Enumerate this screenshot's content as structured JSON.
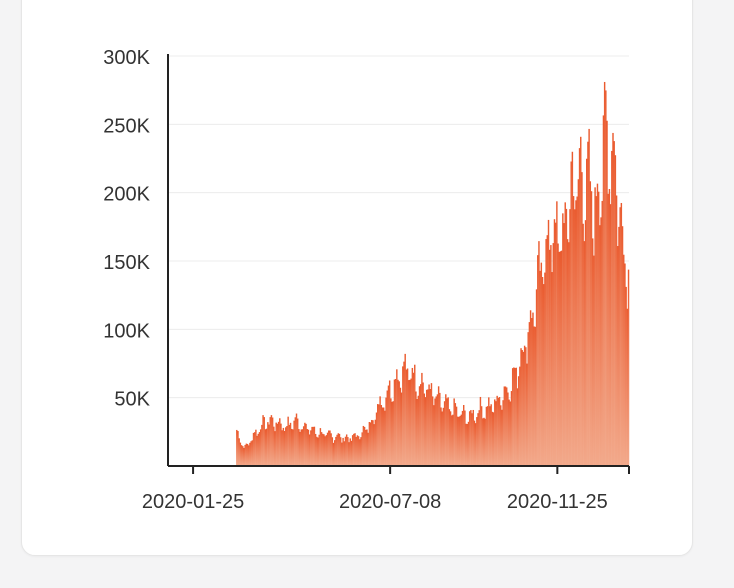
{
  "chart_data": {
    "type": "bar",
    "title": "",
    "xlabel": "",
    "ylabel": "",
    "x_range": [
      "2020-01-04",
      "2021-01-24"
    ],
    "ylim": [
      0,
      300000
    ],
    "y_ticks": [
      {
        "value": 50000,
        "label": "50K"
      },
      {
        "value": 100000,
        "label": "100K"
      },
      {
        "value": 150000,
        "label": "150K"
      },
      {
        "value": 200000,
        "label": "200K"
      },
      {
        "value": 250000,
        "label": "250K"
      },
      {
        "value": 300000,
        "label": "300K"
      }
    ],
    "x_ticks": [
      {
        "date": "2020-01-25",
        "label": "2020-01-25"
      },
      {
        "date": "2020-07-08",
        "label": "2020-07-08"
      },
      {
        "date": "2020-11-25",
        "label": "2020-11-25"
      }
    ],
    "grid": true,
    "legend": "none",
    "bar_color_top": "#ea5a2e",
    "bar_color_bottom": "#f2a98b",
    "series": [
      {
        "name": "",
        "points": [
          [
            "2020-03-01",
            24000
          ],
          [
            "2020-03-08",
            13000
          ],
          [
            "2020-03-15",
            22000
          ],
          [
            "2020-03-22",
            30000
          ],
          [
            "2020-03-29",
            33000
          ],
          [
            "2020-04-05",
            31000
          ],
          [
            "2020-04-12",
            29000
          ],
          [
            "2020-04-19",
            33000
          ],
          [
            "2020-04-26",
            29000
          ],
          [
            "2020-05-03",
            26000
          ],
          [
            "2020-05-10",
            24000
          ],
          [
            "2020-05-17",
            22000
          ],
          [
            "2020-05-24",
            22000
          ],
          [
            "2020-05-31",
            20000
          ],
          [
            "2020-06-07",
            21000
          ],
          [
            "2020-06-14",
            24000
          ],
          [
            "2020-06-21",
            31000
          ],
          [
            "2020-06-28",
            44000
          ],
          [
            "2020-07-05",
            53000
          ],
          [
            "2020-07-12",
            63000
          ],
          [
            "2020-07-19",
            70000
          ],
          [
            "2020-07-26",
            67000
          ],
          [
            "2020-08-02",
            60000
          ],
          [
            "2020-08-09",
            55000
          ],
          [
            "2020-08-16",
            48000
          ],
          [
            "2020-08-23",
            44000
          ],
          [
            "2020-08-30",
            41000
          ],
          [
            "2020-09-06",
            37000
          ],
          [
            "2020-09-13",
            36000
          ],
          [
            "2020-09-20",
            41000
          ],
          [
            "2020-09-27",
            42000
          ],
          [
            "2020-10-04",
            46000
          ],
          [
            "2020-10-11",
            53000
          ],
          [
            "2020-10-18",
            62000
          ],
          [
            "2020-10-25",
            80000
          ],
          [
            "2020-11-01",
            100000
          ],
          [
            "2020-11-08",
            130000
          ],
          [
            "2020-11-15",
            160000
          ],
          [
            "2020-11-22",
            170000
          ],
          [
            "2020-11-29",
            165000
          ],
          [
            "2020-12-06",
            200000
          ],
          [
            "2020-12-13",
            210000
          ],
          [
            "2020-12-20",
            205000
          ],
          [
            "2020-12-27",
            185000
          ],
          [
            "2021-01-03",
            240000
          ],
          [
            "2021-01-10",
            230000
          ],
          [
            "2021-01-17",
            175000
          ],
          [
            "2021-01-23",
            140000
          ]
        ]
      }
    ]
  }
}
